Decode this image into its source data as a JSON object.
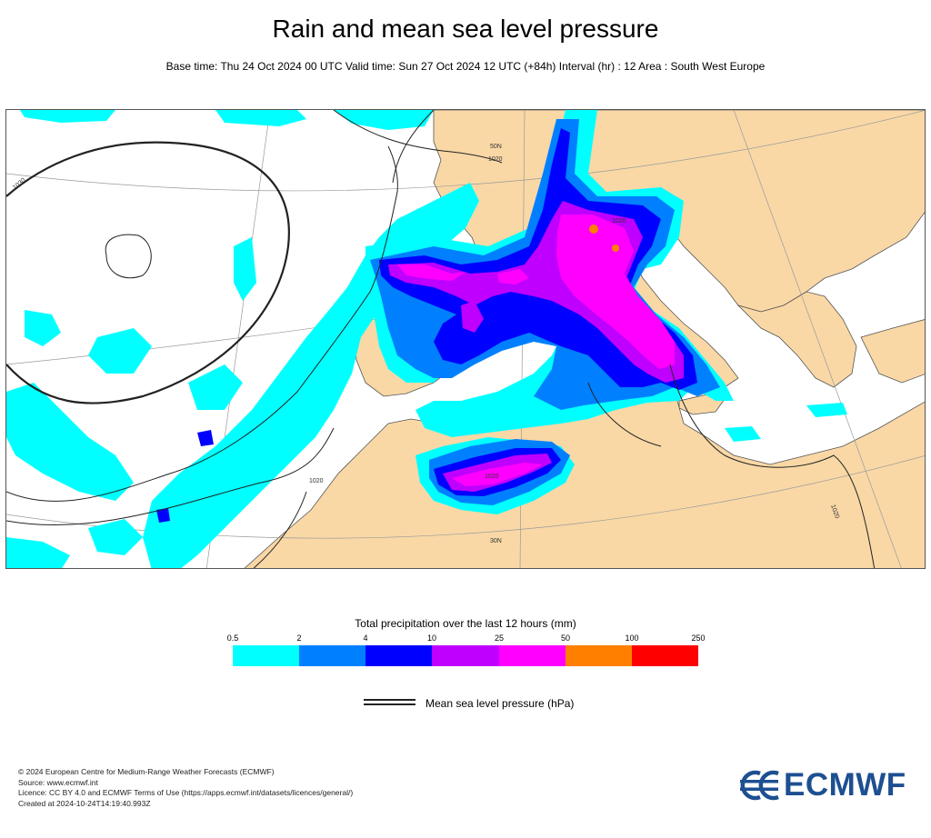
{
  "header": {
    "title": "Rain and mean sea level pressure",
    "subtitle": "Base time: Thu 24 Oct 2024 00 UTC Valid time: Sun 27 Oct 2024 12 UTC (+84h) Interval (hr) : 12 Area : South West Europe"
  },
  "map": {
    "graticule_labels": [
      "50N",
      "30N"
    ],
    "isobar_labels": [
      "1020",
      "1030",
      "1020",
      "1020",
      "1020",
      "1020"
    ],
    "colors": {
      "land": "#f9d8a6",
      "sea": "#ffffff"
    }
  },
  "colorbar": {
    "title": "Total precipitation over the last 12 hours (mm)",
    "ticks": [
      "0.5",
      "2",
      "4",
      "10",
      "25",
      "50",
      "100",
      "250"
    ],
    "colors": [
      "#00ffff",
      "#0080ff",
      "#0000ff",
      "#bf00ff",
      "#ff00ff",
      "#ff8000",
      "#ff0000"
    ]
  },
  "legend": {
    "pressure_label": "Mean sea level pressure (hPa)"
  },
  "footer": {
    "lines": [
      "© 2024 European Centre for Medium-Range Weather Forecasts (ECMWF)",
      "Source: www.ecmwf.int",
      "Licence: CC BY 4.0 and ECMWF Terms of Use (https://apps.ecmwf.int/datasets/licences/general/)",
      "Created at 2024-10-24T14:19:40.993Z"
    ]
  },
  "logo": {
    "text": "ECMWF",
    "color": "#1d4f91"
  }
}
